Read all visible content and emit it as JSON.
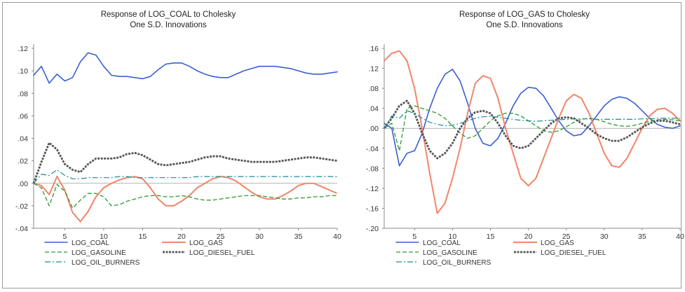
{
  "chart_data": [
    {
      "type": "line",
      "title": "Response of LOG_COAL to Cholesky",
      "subtitle": "One S.D. Innovations",
      "xlabel": "",
      "ylabel": "",
      "xlim": [
        1,
        40
      ],
      "ylim": [
        -0.04,
        0.12
      ],
      "yticks": [
        ".12",
        ".10",
        ".08",
        ".06",
        ".04",
        ".02",
        ".00",
        "-.02",
        "-.04"
      ],
      "xticks": [
        "5",
        "10",
        "15",
        "20",
        "25",
        "30",
        "35",
        "40"
      ],
      "grid": false,
      "zero_line": true,
      "legend_position": "bottom",
      "series": [
        {
          "name": "LOG_COAL",
          "color": "#3a5fd0",
          "style": "solid",
          "values": [
            0.096,
            0.104,
            0.089,
            0.097,
            0.091,
            0.094,
            0.108,
            0.116,
            0.114,
            0.104,
            0.096,
            0.095,
            0.095,
            0.094,
            0.093,
            0.095,
            0.101,
            0.106,
            0.107,
            0.107,
            0.104,
            0.1,
            0.097,
            0.095,
            0.094,
            0.094,
            0.097,
            0.1,
            0.102,
            0.104,
            0.104,
            0.104,
            0.103,
            0.102,
            0.1,
            0.098,
            0.097,
            0.097,
            0.098,
            0.099
          ]
        },
        {
          "name": "LOG_GAS",
          "color": "#f0856a",
          "style": "dotted",
          "values": [
            0.0,
            -0.002,
            -0.01,
            0.006,
            -0.006,
            -0.026,
            -0.034,
            -0.025,
            -0.012,
            -0.004,
            0.0,
            0.003,
            0.005,
            0.006,
            0.004,
            -0.004,
            -0.014,
            -0.02,
            -0.02,
            -0.016,
            -0.011,
            -0.004,
            0.0,
            0.004,
            0.006,
            0.005,
            0.002,
            -0.003,
            -0.008,
            -0.012,
            -0.014,
            -0.014,
            -0.011,
            -0.007,
            -0.002,
            0.0,
            0.0,
            -0.003,
            -0.006,
            -0.009
          ]
        },
        {
          "name": "LOG_GASOLINE",
          "color": "#2e9a2e",
          "style": "dashed",
          "values": [
            0.0,
            -0.004,
            -0.02,
            -0.001,
            -0.007,
            -0.022,
            -0.015,
            -0.009,
            -0.009,
            -0.012,
            -0.02,
            -0.019,
            -0.016,
            -0.014,
            -0.012,
            -0.011,
            -0.011,
            -0.012,
            -0.012,
            -0.011,
            -0.012,
            -0.014,
            -0.015,
            -0.015,
            -0.014,
            -0.013,
            -0.012,
            -0.011,
            -0.011,
            -0.011,
            -0.012,
            -0.013,
            -0.014,
            -0.014,
            -0.013,
            -0.013,
            -0.012,
            -0.012,
            -0.011,
            -0.011
          ]
        },
        {
          "name": "LOG_DIESEL_FUEL",
          "color": "#555555",
          "style": "thick",
          "values": [
            0.0,
            0.019,
            0.036,
            0.03,
            0.017,
            0.012,
            0.01,
            0.017,
            0.022,
            0.022,
            0.022,
            0.023,
            0.026,
            0.027,
            0.025,
            0.021,
            0.017,
            0.016,
            0.017,
            0.018,
            0.019,
            0.021,
            0.023,
            0.024,
            0.024,
            0.022,
            0.021,
            0.02,
            0.019,
            0.019,
            0.019,
            0.019,
            0.02,
            0.021,
            0.022,
            0.023,
            0.023,
            0.022,
            0.021,
            0.02
          ]
        },
        {
          "name": "LOG_OIL_BURNERS",
          "color": "#1a8a9a",
          "style": "dashdot",
          "values": [
            0.0,
            0.008,
            0.007,
            0.012,
            0.007,
            0.004,
            0.004,
            0.005,
            0.005,
            0.005,
            0.005,
            0.006,
            0.006,
            0.005,
            0.005,
            0.005,
            0.005,
            0.005,
            0.005,
            0.005,
            0.005,
            0.006,
            0.006,
            0.006,
            0.006,
            0.006,
            0.006,
            0.006,
            0.006,
            0.006,
            0.006,
            0.006,
            0.006,
            0.006,
            0.006,
            0.006,
            0.006,
            0.006,
            0.006,
            0.006
          ]
        }
      ]
    },
    {
      "type": "line",
      "title": "Response of LOG_GAS to Cholesky",
      "subtitle": "One S.D. Innovations",
      "xlabel": "",
      "ylabel": "",
      "xlim": [
        1,
        40
      ],
      "ylim": [
        -0.2,
        0.16
      ],
      "yticks": [
        ".16",
        ".12",
        ".08",
        ".04",
        ".00",
        "-.04",
        "-.08",
        "-.12",
        "-.16",
        "-.20"
      ],
      "xticks": [
        "5",
        "10",
        "15",
        "20",
        "25",
        "30",
        "35",
        "40"
      ],
      "grid": false,
      "zero_line": true,
      "legend_position": "bottom",
      "series": [
        {
          "name": "LOG_COAL",
          "color": "#3a5fd0",
          "style": "solid",
          "values": [
            0.01,
            0.0,
            -0.075,
            -0.05,
            -0.045,
            -0.01,
            0.04,
            0.08,
            0.108,
            0.118,
            0.095,
            0.05,
            0.0,
            -0.03,
            -0.035,
            -0.02,
            0.01,
            0.045,
            0.07,
            0.082,
            0.08,
            0.065,
            0.04,
            0.015,
            -0.005,
            -0.015,
            -0.012,
            0.005,
            0.025,
            0.045,
            0.058,
            0.063,
            0.06,
            0.05,
            0.035,
            0.02,
            0.008,
            0.002,
            0.0,
            0.005
          ]
        },
        {
          "name": "LOG_GAS",
          "color": "#f0856a",
          "style": "dotted",
          "values": [
            0.135,
            0.15,
            0.155,
            0.135,
            0.08,
            0.0,
            -0.09,
            -0.17,
            -0.15,
            -0.1,
            -0.04,
            0.03,
            0.09,
            0.105,
            0.1,
            0.06,
            0.0,
            -0.05,
            -0.1,
            -0.115,
            -0.1,
            -0.06,
            -0.02,
            0.02,
            0.055,
            0.068,
            0.06,
            0.03,
            -0.01,
            -0.05,
            -0.075,
            -0.078,
            -0.06,
            -0.03,
            0.0,
            0.025,
            0.038,
            0.04,
            0.03,
            0.015
          ]
        },
        {
          "name": "LOG_GASOLINE",
          "color": "#2e9a2e",
          "style": "dashed",
          "values": [
            0.0,
            0.01,
            -0.045,
            0.04,
            0.045,
            0.04,
            0.035,
            0.03,
            0.02,
            0.005,
            -0.01,
            -0.02,
            -0.015,
            0.0,
            0.015,
            0.025,
            0.03,
            0.03,
            0.025,
            0.015,
            0.005,
            -0.005,
            -0.008,
            -0.005,
            0.003,
            0.012,
            0.018,
            0.02,
            0.018,
            0.013,
            0.008,
            0.005,
            0.004,
            0.006,
            0.01,
            0.014,
            0.017,
            0.018,
            0.017,
            0.015
          ]
        },
        {
          "name": "LOG_DIESEL_FUEL",
          "color": "#555555",
          "style": "thick",
          "values": [
            0.0,
            0.02,
            0.045,
            0.055,
            0.03,
            -0.01,
            -0.045,
            -0.06,
            -0.05,
            -0.03,
            0.0,
            0.02,
            0.032,
            0.035,
            0.03,
            0.01,
            -0.015,
            -0.035,
            -0.04,
            -0.035,
            -0.02,
            -0.005,
            0.01,
            0.02,
            0.022,
            0.02,
            0.01,
            0.0,
            -0.012,
            -0.02,
            -0.025,
            -0.025,
            -0.018,
            -0.008,
            0.002,
            0.01,
            0.015,
            0.015,
            0.012,
            0.008
          ]
        },
        {
          "name": "LOG_OIL_BURNERS",
          "color": "#1a8a9a",
          "style": "dashdot",
          "values": [
            0.0,
            0.025,
            0.02,
            0.035,
            0.03,
            0.02,
            0.012,
            0.008,
            0.005,
            0.006,
            0.01,
            0.015,
            0.02,
            0.023,
            0.024,
            0.022,
            0.02,
            0.018,
            0.016,
            0.015,
            0.014,
            0.015,
            0.016,
            0.017,
            0.018,
            0.019,
            0.019,
            0.019,
            0.018,
            0.018,
            0.018,
            0.018,
            0.018,
            0.018,
            0.019,
            0.019,
            0.02,
            0.02,
            0.02,
            0.02
          ]
        }
      ]
    }
  ]
}
